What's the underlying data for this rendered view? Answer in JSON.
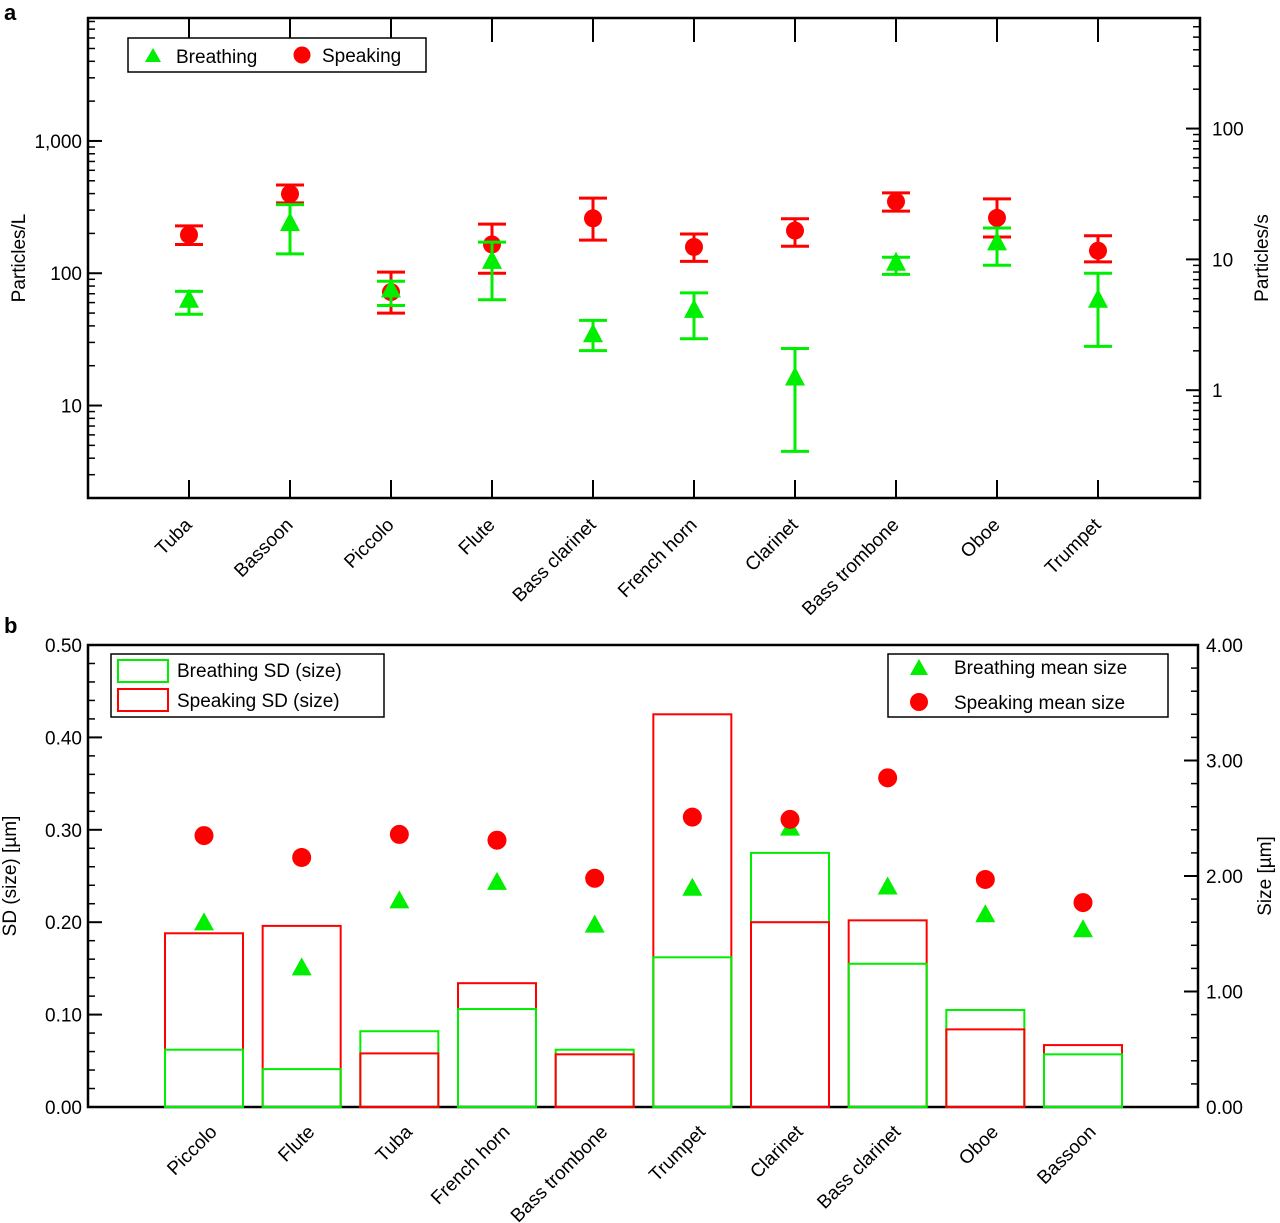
{
  "chart_data": [
    {
      "panel_label": "a",
      "type": "scatter",
      "categories": [
        "Tuba",
        "Bassoon",
        "Piccolo",
        "Flute",
        "Bass clarinet",
        "French horn",
        "Clarinet",
        "Bass trombone",
        "Oboe",
        "Trumpet"
      ],
      "yscale": "log",
      "ylabel": "Particles/L",
      "ylim": [
        2,
        8500
      ],
      "yticks": [
        10,
        100,
        1000
      ],
      "ytick_labels": [
        "10",
        "100",
        "1,000"
      ],
      "y2label": "Particles/s",
      "y2lim": [
        0.15,
        700
      ],
      "y2ticks": [
        1,
        10,
        100
      ],
      "y2tick_labels": [
        "1",
        "10",
        "100"
      ],
      "grid": false,
      "legend_position": "top-left",
      "series": [
        {
          "name": "Breathing",
          "marker": "triangle",
          "color": "#00ee00",
          "values": [
            62,
            235,
            74,
            122,
            34,
            52,
            16,
            118,
            168,
            62
          ],
          "err_low": [
            49,
            140,
            57,
            63,
            26,
            32,
            4.5,
            98,
            115,
            28
          ],
          "err_high": [
            73,
            330,
            87,
            172,
            44,
            71,
            27,
            132,
            220,
            100
          ]
        },
        {
          "name": "Speaking",
          "marker": "circle",
          "color": "#ff0000",
          "values": [
            195,
            398,
            72,
            165,
            260,
            158,
            210,
            348,
            262,
            148
          ],
          "err_low": [
            165,
            340,
            50,
            100,
            178,
            123,
            160,
            295,
            188,
            122
          ],
          "err_high": [
            228,
            465,
            102,
            235,
            370,
            198,
            258,
            405,
            365,
            192
          ]
        }
      ]
    },
    {
      "panel_label": "b",
      "type": "bar",
      "categories": [
        "Piccolo",
        "Flute",
        "Tuba",
        "French horn",
        "Bass trombone",
        "Trumpet",
        "Clarinet",
        "Bass clarinet",
        "Oboe",
        "Bassoon"
      ],
      "ylabel": "SD (size) [µm]",
      "ylim": [
        0,
        0.5
      ],
      "yticks": [
        0,
        0.1,
        0.2,
        0.3,
        0.4,
        0.5
      ],
      "ytick_labels": [
        "0.00",
        "0.10",
        "0.20",
        "0.30",
        "0.40",
        "0.50"
      ],
      "y2label": "Size [µm]",
      "y2lim": [
        0,
        4
      ],
      "y2ticks": [
        0,
        1,
        2,
        3,
        4
      ],
      "y2tick_labels": [
        "0.00",
        "1.00",
        "2.00",
        "3.00",
        "4.00"
      ],
      "grid": false,
      "bar_legend_position": "top-left",
      "marker_legend_position": "top-right",
      "bar_series": [
        {
          "name": "Breathing SD (size)",
          "color": "#00ee00",
          "values": [
            0.062,
            0.041,
            0.082,
            0.106,
            0.062,
            0.162,
            0.275,
            0.155,
            0.105,
            0.057
          ]
        },
        {
          "name": "Speaking SD (size)",
          "color": "#ff0000",
          "values": [
            0.188,
            0.196,
            0.058,
            0.134,
            0.057,
            0.425,
            0.2,
            0.202,
            0.084,
            0.067
          ]
        }
      ],
      "marker_series": [
        {
          "name": "Breathing mean size",
          "marker": "triangle",
          "color": "#00ee00",
          "values": [
            1.59,
            1.2,
            1.78,
            1.94,
            1.57,
            1.89,
            2.41,
            1.9,
            1.66,
            1.53
          ]
        },
        {
          "name": "Speaking mean size",
          "marker": "circle",
          "color": "#ff0000",
          "values": [
            2.35,
            2.16,
            2.36,
            2.31,
            1.98,
            2.51,
            2.49,
            2.85,
            1.97,
            1.77
          ]
        }
      ]
    }
  ]
}
